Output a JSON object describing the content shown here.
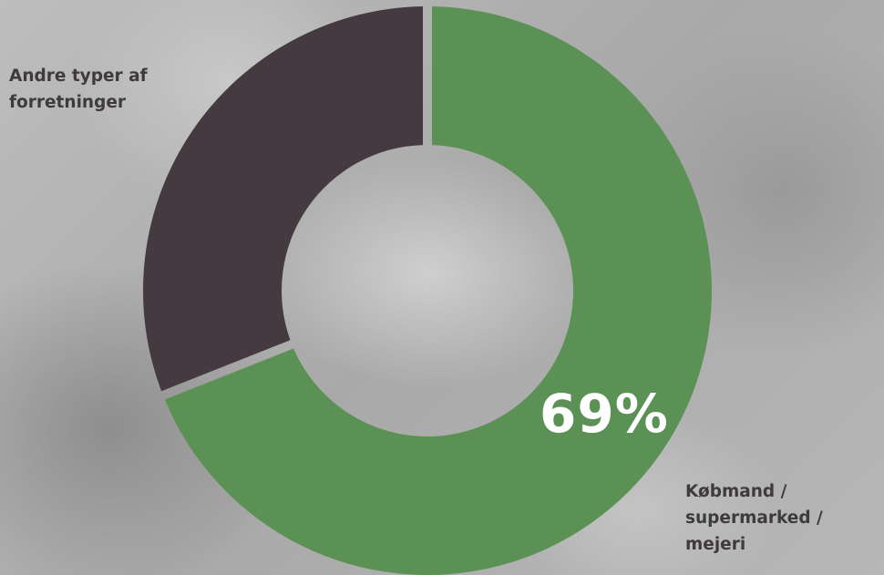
{
  "chart_data": {
    "type": "pie",
    "title": "",
    "slices": [
      {
        "label": "Købmand / supermarked / mejeri",
        "value": 69,
        "color": "#5b9155"
      },
      {
        "label": "Andre typer af forretninger",
        "value": 31,
        "color": "#443a40"
      }
    ],
    "highlight_label": "69%",
    "donut": true
  },
  "labels": {
    "other": "Andre typer af forretninger",
    "main": "Købmand / supermarked / mejeri"
  }
}
